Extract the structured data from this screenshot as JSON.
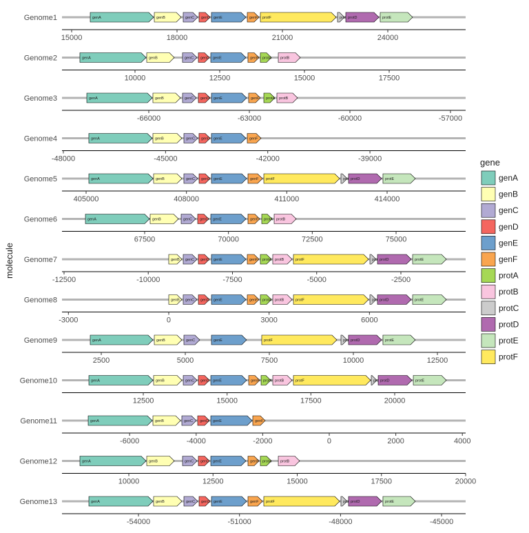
{
  "chart_data": {
    "type": "gene-arrow",
    "ylabel": "molecule",
    "legend_title": "gene",
    "genes": [
      {
        "name": "genA",
        "color": "#7fcdbb"
      },
      {
        "name": "genB",
        "color": "#ffffb3"
      },
      {
        "name": "genC",
        "color": "#b1aad3"
      },
      {
        "name": "genD",
        "color": "#f4665f"
      },
      {
        "name": "genE",
        "color": "#6d9fcc"
      },
      {
        "name": "genF",
        "color": "#f9a54f"
      },
      {
        "name": "protA",
        "color": "#a6d855"
      },
      {
        "name": "protB",
        "color": "#f9c5df"
      },
      {
        "name": "protC",
        "color": "#cccccc"
      },
      {
        "name": "protD",
        "color": "#b06aaf"
      },
      {
        "name": "protE",
        "color": "#c5e6bc"
      },
      {
        "name": "protF",
        "color": "#ffe95e"
      }
    ],
    "molecules": [
      {
        "name": "Genome1",
        "xlim": [
          14725,
          26216
        ],
        "xticks": [
          15000,
          18000,
          21000,
          24000
        ],
        "genes": [
          {
            "gene": "genA",
            "start": 15529,
            "end": 17333
          },
          {
            "gene": "genB",
            "start": 17353,
            "end": 18118
          },
          {
            "gene": "genC",
            "start": 18176,
            "end": 18588
          },
          {
            "gene": "genD",
            "start": 18627,
            "end": 18941
          },
          {
            "gene": "genE",
            "start": 18980,
            "end": 19961
          },
          {
            "gene": "genF",
            "start": 20000,
            "end": 20333
          },
          {
            "gene": "protF",
            "start": 20373,
            "end": 22529
          },
          {
            "gene": "protC",
            "start": 22569,
            "end": 22765
          },
          {
            "gene": "protD",
            "start": 22804,
            "end": 23745
          },
          {
            "gene": "protE",
            "start": 23784,
            "end": 24706
          }
        ]
      },
      {
        "name": "Genome2",
        "xlim": [
          7846,
          19756
        ],
        "xticks": [
          10000,
          12500,
          15000,
          17500
        ],
        "genes": [
          {
            "gene": "genA",
            "start": 8374,
            "end": 10325
          },
          {
            "gene": "genB",
            "start": 10346,
            "end": 11159
          },
          {
            "gene": "genC",
            "start": 11402,
            "end": 11829
          },
          {
            "gene": "genD",
            "start": 11870,
            "end": 12195
          },
          {
            "gene": "genE",
            "start": 12236,
            "end": 13272
          },
          {
            "gene": "genF",
            "start": 13333,
            "end": 13659
          },
          {
            "gene": "protA",
            "start": 13699,
            "end": 14024
          },
          {
            "gene": "protB",
            "start": 14228,
            "end": 14878
          }
        ]
      },
      {
        "name": "Genome3",
        "xlim": [
          -68589,
          -56548
        ],
        "xticks": [
          -66000,
          -63000,
          -60000,
          -57000
        ],
        "genes": [
          {
            "gene": "genA",
            "start": -67849,
            "end": -65897
          },
          {
            "gene": "genB",
            "start": -65877,
            "end": -65055
          },
          {
            "gene": "genC",
            "start": -64993,
            "end": -64582
          },
          {
            "gene": "genD",
            "start": -64521,
            "end": -64172
          },
          {
            "gene": "genE",
            "start": -64130,
            "end": -63082
          },
          {
            "gene": "genF",
            "start": -63021,
            "end": -62671
          },
          {
            "gene": "protA",
            "start": -62568,
            "end": -62240
          },
          {
            "gene": "protB",
            "start": -62178,
            "end": -61562
          }
        ]
      },
      {
        "name": "Genome4",
        "xlim": [
          -48040,
          -36191
        ],
        "xticks": [
          -48000,
          -45000,
          -42000,
          -39000
        ],
        "genes": [
          {
            "gene": "genA",
            "start": -47252,
            "end": -45392
          },
          {
            "gene": "genB",
            "start": -45371,
            "end": -44522
          },
          {
            "gene": "genC",
            "start": -44461,
            "end": -44057
          },
          {
            "gene": "genD",
            "start": -44017,
            "end": -43693
          },
          {
            "gene": "genE",
            "start": -43653,
            "end": -42642
          },
          {
            "gene": "genF",
            "start": -42601,
            "end": -42197
          }
        ]
      },
      {
        "name": "Genome5",
        "xlim": [
          404279,
          416348
        ],
        "xticks": [
          405000,
          408000,
          411000,
          414000
        ],
        "genes": [
          {
            "gene": "genA",
            "start": 405082,
            "end": 407000
          },
          {
            "gene": "genB",
            "start": 407018,
            "end": 407863
          },
          {
            "gene": "genC",
            "start": 407924,
            "end": 408336
          },
          {
            "gene": "genD",
            "start": 408378,
            "end": 408707
          },
          {
            "gene": "genE",
            "start": 408748,
            "end": 409799
          },
          {
            "gene": "genF",
            "start": 409840,
            "end": 410272
          },
          {
            "gene": "protF",
            "start": 410314,
            "end": 412579
          },
          {
            "gene": "protC",
            "start": 412620,
            "end": 412806
          },
          {
            "gene": "protD",
            "start": 412847,
            "end": 413835
          },
          {
            "gene": "protE",
            "start": 413876,
            "end": 414844
          }
        ]
      },
      {
        "name": "Genome6",
        "xlim": [
          65034,
          77075
        ],
        "xticks": [
          67500,
          70000,
          72500,
          75000
        ],
        "genes": [
          {
            "gene": "genA",
            "start": 65733,
            "end": 67644
          },
          {
            "gene": "genB",
            "start": 67664,
            "end": 68507
          },
          {
            "gene": "genC",
            "start": 68589,
            "end": 69021
          },
          {
            "gene": "genD",
            "start": 69082,
            "end": 69411
          },
          {
            "gene": "genE",
            "start": 69473,
            "end": 70521
          },
          {
            "gene": "genF",
            "start": 70582,
            "end": 70932
          },
          {
            "gene": "protA",
            "start": 70993,
            "end": 71301
          },
          {
            "gene": "protB",
            "start": 71363,
            "end": 72021
          }
        ]
      },
      {
        "name": "Genome7",
        "xlim": [
          -12561,
          -578
        ],
        "xticks": [
          -12500,
          -10000,
          -7500,
          -5000,
          -2500
        ],
        "genes": [
          {
            "gene": "genB",
            "start": -9392,
            "end": -9003
          },
          {
            "gene": "genC",
            "start": -8962,
            "end": -8553
          },
          {
            "gene": "genD",
            "start": -8512,
            "end": -8185
          },
          {
            "gene": "genE",
            "start": -8124,
            "end": -7101
          },
          {
            "gene": "genF",
            "start": -7060,
            "end": -6713
          },
          {
            "gene": "protA",
            "start": -6672,
            "end": -6345
          },
          {
            "gene": "protB",
            "start": -6304,
            "end": -5731
          },
          {
            "gene": "protF",
            "start": -5690,
            "end": -3461
          },
          {
            "gene": "protC",
            "start": -3420,
            "end": -3236
          },
          {
            "gene": "protD",
            "start": -3195,
            "end": -2193
          },
          {
            "gene": "protE",
            "start": -2152,
            "end": -1150
          }
        ]
      },
      {
        "name": "Genome8",
        "xlim": [
          -3192,
          8876
        ],
        "xticks": [
          -3000,
          0,
          3000,
          6000
        ],
        "genes": [
          {
            "gene": "genB",
            "start": 0,
            "end": 391
          },
          {
            "gene": "genC",
            "start": 432,
            "end": 844
          },
          {
            "gene": "genD",
            "start": 886,
            "end": 1215
          },
          {
            "gene": "genE",
            "start": 1277,
            "end": 2307
          },
          {
            "gene": "genF",
            "start": 2348,
            "end": 2698
          },
          {
            "gene": "protA",
            "start": 2739,
            "end": 3069
          },
          {
            "gene": "protB",
            "start": 3110,
            "end": 3687
          },
          {
            "gene": "protF",
            "start": 3728,
            "end": 5973
          },
          {
            "gene": "protC",
            "start": 6014,
            "end": 6199
          },
          {
            "gene": "protD",
            "start": 6240,
            "end": 7249
          },
          {
            "gene": "protE",
            "start": 7291,
            "end": 8300
          }
        ]
      },
      {
        "name": "Genome9",
        "xlim": [
          1332,
          13340
        ],
        "xticks": [
          2500,
          5000,
          7500,
          10000,
          12500
        ],
        "genes": [
          {
            "gene": "genA",
            "start": 2172,
            "end": 4037
          },
          {
            "gene": "genB",
            "start": 4078,
            "end": 4897
          },
          {
            "gene": "genC",
            "start": 4959,
            "end": 5430
          },
          {
            "gene": "genE",
            "start": 5778,
            "end": 6823
          },
          {
            "gene": "protF",
            "start": 7274,
            "end": 9508
          },
          {
            "gene": "protC",
            "start": 9631,
            "end": 9815
          },
          {
            "gene": "protD",
            "start": 9856,
            "end": 10839
          },
          {
            "gene": "protE",
            "start": 10880,
            "end": 11843
          }
        ]
      },
      {
        "name": "Genome10",
        "xlim": [
          10075,
          22116
        ],
        "xticks": [
          12500,
          15000,
          17500,
          20000
        ],
        "genes": [
          {
            "gene": "genA",
            "start": 10877,
            "end": 12788
          },
          {
            "gene": "genB",
            "start": 12808,
            "end": 13651
          },
          {
            "gene": "genC",
            "start": 13692,
            "end": 14103
          },
          {
            "gene": "genD",
            "start": 14144,
            "end": 14473
          },
          {
            "gene": "genE",
            "start": 14514,
            "end": 15582
          },
          {
            "gene": "genF",
            "start": 15644,
            "end": 15973
          },
          {
            "gene": "protA",
            "start": 16014,
            "end": 16301
          },
          {
            "gene": "protB",
            "start": 16363,
            "end": 16938
          },
          {
            "gene": "protF",
            "start": 16979,
            "end": 19281
          },
          {
            "gene": "protC",
            "start": 19301,
            "end": 19466
          },
          {
            "gene": "protD",
            "start": 19507,
            "end": 20514
          },
          {
            "gene": "protE",
            "start": 20555,
            "end": 21541
          }
        ]
      },
      {
        "name": "Genome11",
        "xlim": [
          -8032,
          4099
        ],
        "xticks": [
          -6000,
          -4000,
          -2000,
          0,
          2000,
          4000
        ],
        "genes": [
          {
            "gene": "genA",
            "start": -7245,
            "end": -5320
          },
          {
            "gene": "genB",
            "start": -5299,
            "end": -4471
          },
          {
            "gene": "genC",
            "start": -4430,
            "end": -3995
          },
          {
            "gene": "genD",
            "start": -3954,
            "end": -3602
          },
          {
            "gene": "genE",
            "start": -3560,
            "end": -2318
          },
          {
            "gene": "genF",
            "start": -2298,
            "end": -1925
          }
        ]
      },
      {
        "name": "Genome12",
        "xlim": [
          8016,
          20000
        ],
        "xticks": [
          10000,
          12500,
          15000,
          17500,
          20000
        ],
        "genes": [
          {
            "gene": "genA",
            "start": 8548,
            "end": 10511
          },
          {
            "gene": "genB",
            "start": 10532,
            "end": 11350
          },
          {
            "gene": "genC",
            "start": 11595,
            "end": 12025
          },
          {
            "gene": "genD",
            "start": 12065,
            "end": 12393
          },
          {
            "gene": "genE",
            "start": 12434,
            "end": 13477
          },
          {
            "gene": "genF",
            "start": 13538,
            "end": 13865
          },
          {
            "gene": "protA",
            "start": 13906,
            "end": 14233
          },
          {
            "gene": "protB",
            "start": 14438,
            "end": 15072
          }
        ]
      },
      {
        "name": "Genome13",
        "xlim": [
          -56270,
          -44286
        ],
        "xticks": [
          -54000,
          -51000,
          -48000,
          -45000
        ],
        "genes": [
          {
            "gene": "genA",
            "start": -55472,
            "end": -53571
          },
          {
            "gene": "genB",
            "start": -53550,
            "end": -52712
          },
          {
            "gene": "genC",
            "start": -52650,
            "end": -52241
          },
          {
            "gene": "genD",
            "start": -52200,
            "end": -51873
          },
          {
            "gene": "genE",
            "start": -51832,
            "end": -50789
          },
          {
            "gene": "genF",
            "start": -50748,
            "end": -50319
          },
          {
            "gene": "protF",
            "start": -50278,
            "end": -48027
          },
          {
            "gene": "protC",
            "start": -47988,
            "end": -47804
          },
          {
            "gene": "protD",
            "start": -47763,
            "end": -46782
          },
          {
            "gene": "protE",
            "start": -46741,
            "end": -45780
          }
        ]
      }
    ]
  }
}
